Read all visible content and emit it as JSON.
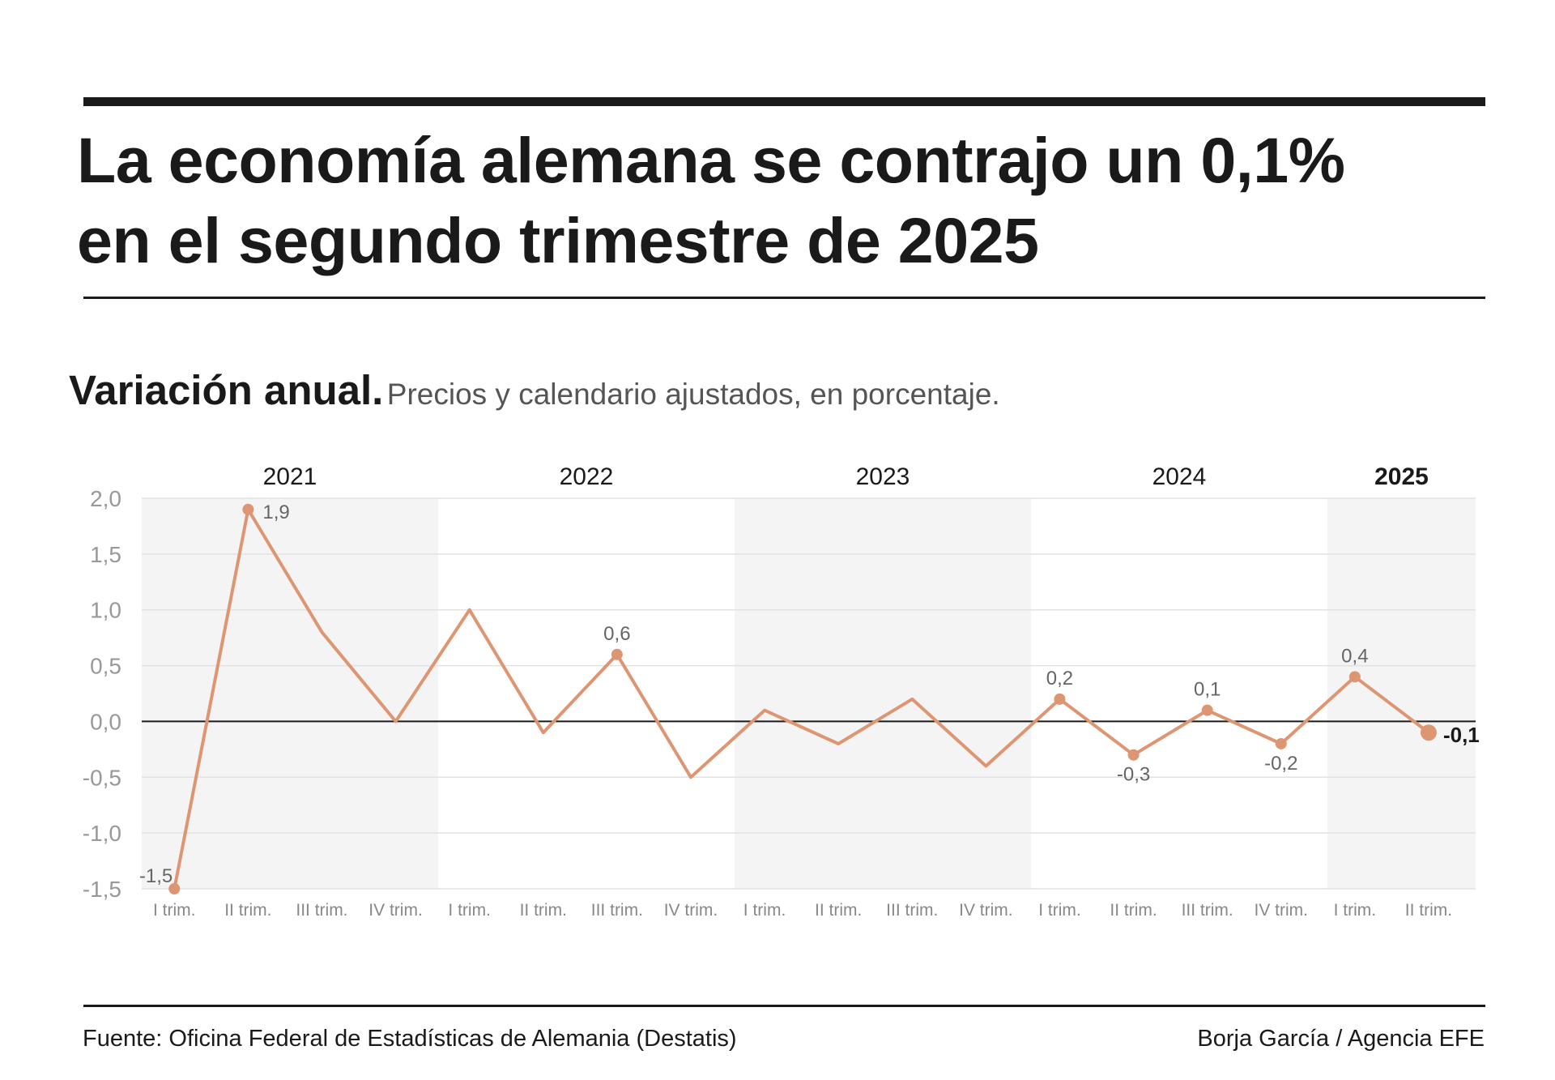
{
  "header": {
    "title_line1": "La economía alemana se contrajo un 0,1%",
    "title_line2": "en el segundo trimestre de 2025"
  },
  "subtitle": {
    "bold": "Variación anual.",
    "light": "Precios y calendario ajustados, en porcentaje."
  },
  "footer": {
    "source": "Fuente: Oficina Federal de Estadísticas de Alemania (Destatis)",
    "credit": "Borja García / Agencia EFE"
  },
  "colors": {
    "line": "#dd9572",
    "band": "#f4f4f4",
    "grid": "#e2e2e2",
    "zero": "#1a1a1a",
    "tick": "#999999",
    "axis_label": "#888888",
    "data_label": "#666666",
    "year": "#1a1a1a"
  },
  "chart_data": {
    "type": "line",
    "ylim": [
      -1.5,
      2.0
    ],
    "yticks": [
      "2,0",
      "1,5",
      "1,0",
      "0,5",
      "0,0",
      "-0,5",
      "-1,0",
      "-1,5"
    ],
    "ytick_values": [
      2.0,
      1.5,
      1.0,
      0.5,
      0.0,
      -0.5,
      -1.0,
      -1.5
    ],
    "grid": true,
    "categories": [
      "I trim.",
      "II trim.",
      "III trim.",
      "IV trim.",
      "I trim.",
      "II trim.",
      "III trim.",
      "IV trim.",
      "I trim.",
      "II trim.",
      "III trim.",
      "IV trim.",
      "I trim.",
      "II trim.",
      "III trim.",
      "IV trim.",
      "I trim.",
      "II trim."
    ],
    "years": [
      {
        "label": "2021",
        "start": 0,
        "end": 3,
        "bold": false
      },
      {
        "label": "2022",
        "start": 4,
        "end": 7,
        "bold": false
      },
      {
        "label": "2023",
        "start": 8,
        "end": 11,
        "bold": false
      },
      {
        "label": "2024",
        "start": 12,
        "end": 15,
        "bold": false
      },
      {
        "label": "2025",
        "start": 16,
        "end": 17,
        "bold": true
      }
    ],
    "values": [
      -1.5,
      1.9,
      0.8,
      0.0,
      1.0,
      -0.1,
      0.6,
      -0.5,
      0.1,
      -0.2,
      0.2,
      -0.4,
      0.2,
      -0.3,
      0.1,
      -0.2,
      0.4,
      -0.1
    ],
    "labels": [
      {
        "index": 0,
        "text": "-1,5",
        "pos": "left"
      },
      {
        "index": 1,
        "text": "1,9",
        "pos": "right"
      },
      {
        "index": 6,
        "text": "0,6",
        "pos": "above"
      },
      {
        "index": 12,
        "text": "0,2",
        "pos": "above"
      },
      {
        "index": 13,
        "text": "-0,3",
        "pos": "below"
      },
      {
        "index": 14,
        "text": "0,1",
        "pos": "above"
      },
      {
        "index": 15,
        "text": "-0,2",
        "pos": "below"
      },
      {
        "index": 16,
        "text": "0,4",
        "pos": "above"
      },
      {
        "index": 17,
        "text": "-0,1",
        "pos": "right-bold"
      }
    ]
  }
}
